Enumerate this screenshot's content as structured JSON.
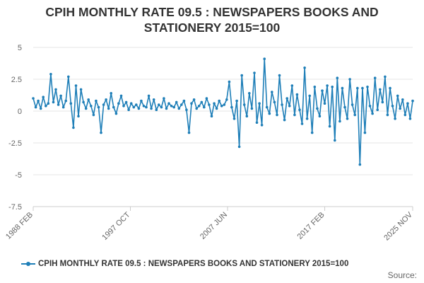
{
  "chart_data": {
    "type": "line",
    "title": "CPIH MONTHLY RATE 09.5 : NEWSPAPERS BOOKS AND STATIONERY 2015=100",
    "xlabel": "",
    "ylabel": "",
    "x_start": "1988 FEB",
    "x_end": "2025 NOV",
    "x_ticks": [
      "1988 FEB",
      "1997 OCT",
      "2007 JUN",
      "2017 FEB",
      "2025 NOV"
    ],
    "y_ticks": [
      "5",
      "2.5",
      "0",
      "-2.5",
      "-5",
      "-7.5"
    ],
    "ylim": [
      -7.5,
      5
    ],
    "grid": true,
    "legend_position": "bottom",
    "series": [
      {
        "name": "CPIH MONTHLY RATE 09.5 : NEWSPAPERS BOOKS AND STATIONERY 2015=100",
        "color": "#1f7fb8",
        "points": [
          [
            "1988 FEB",
            1.0
          ],
          [
            "1988 MAY",
            0.3
          ],
          [
            "1988 AUG",
            0.8
          ],
          [
            "1988 NOV",
            0.2
          ],
          [
            "1989 FEB",
            1.1
          ],
          [
            "1989 MAY",
            0.4
          ],
          [
            "1989 AUG",
            0.6
          ],
          [
            "1989 NOV",
            2.9
          ],
          [
            "1990 FEB",
            0.7
          ],
          [
            "1990 MAY",
            1.7
          ],
          [
            "1990 AUG",
            0.5
          ],
          [
            "1990 NOV",
            1.2
          ],
          [
            "1991 FEB",
            0.3
          ],
          [
            "1991 MAY",
            0.8
          ],
          [
            "1991 AUG",
            2.7
          ],
          [
            "1991 NOV",
            0.6
          ],
          [
            "1992 FEB",
            -1.3
          ],
          [
            "1992 MAY",
            2.0
          ],
          [
            "1992 AUG",
            -0.4
          ],
          [
            "1992 NOV",
            1.7
          ],
          [
            "1993 FEB",
            0.7
          ],
          [
            "1993 MAY",
            0.2
          ],
          [
            "1993 AUG",
            0.9
          ],
          [
            "1993 NOV",
            0.4
          ],
          [
            "1994 FEB",
            -0.3
          ],
          [
            "1994 MAY",
            0.8
          ],
          [
            "1994 AUG",
            0.3
          ],
          [
            "1994 NOV",
            -1.7
          ],
          [
            "1995 FEB",
            0.5
          ],
          [
            "1995 MAY",
            0.9
          ],
          [
            "1995 AUG",
            0.2
          ],
          [
            "1995 NOV",
            1.4
          ],
          [
            "1996 FEB",
            0.3
          ],
          [
            "1996 MAY",
            -0.2
          ],
          [
            "1996 AUG",
            0.6
          ],
          [
            "1996 NOV",
            1.2
          ],
          [
            "1997 FEB",
            0.4
          ],
          [
            "1997 MAY",
            0.7
          ],
          [
            "1997 AUG",
            0.1
          ],
          [
            "1997 NOV",
            0.6
          ],
          [
            "1998 FEB",
            0.3
          ],
          [
            "1998 MAY",
            0.5
          ],
          [
            "1998 AUG",
            0.2
          ],
          [
            "1998 NOV",
            0.8
          ],
          [
            "1999 FEB",
            0.4
          ],
          [
            "1999 MAY",
            0.3
          ],
          [
            "1999 AUG",
            1.2
          ],
          [
            "1999 NOV",
            0.2
          ],
          [
            "2000 FEB",
            0.9
          ],
          [
            "2000 MAY",
            0.1
          ],
          [
            "2000 AUG",
            0.5
          ],
          [
            "2000 NOV",
            0.3
          ],
          [
            "2001 FEB",
            1.0
          ],
          [
            "2001 MAY",
            0.2
          ],
          [
            "2001 AUG",
            0.6
          ],
          [
            "2001 NOV",
            0.4
          ],
          [
            "2002 FEB",
            0.3
          ],
          [
            "2002 MAY",
            0.7
          ],
          [
            "2002 AUG",
            0.2
          ],
          [
            "2002 NOV",
            0.5
          ],
          [
            "2003 FEB",
            0.8
          ],
          [
            "2003 MAY",
            0.1
          ],
          [
            "2003 AUG",
            -1.7
          ],
          [
            "2003 NOV",
            0.6
          ],
          [
            "2004 FEB",
            0.9
          ],
          [
            "2004 MAY",
            0.2
          ],
          [
            "2004 AUG",
            0.4
          ],
          [
            "2004 NOV",
            0.7
          ],
          [
            "2005 FEB",
            0.3
          ],
          [
            "2005 MAY",
            1.0
          ],
          [
            "2005 AUG",
            0.5
          ],
          [
            "2005 NOV",
            -0.4
          ],
          [
            "2006 FEB",
            0.6
          ],
          [
            "2006 MAY",
            0.2
          ],
          [
            "2006 AUG",
            0.8
          ],
          [
            "2006 NOV",
            0.4
          ],
          [
            "2007 FEB",
            0.5
          ],
          [
            "2007 MAY",
            0.9
          ],
          [
            "2007 AUG",
            2.3
          ],
          [
            "2007 NOV",
            0.3
          ],
          [
            "2008 FEB",
            -0.6
          ],
          [
            "2008 MAY",
            0.8
          ],
          [
            "2008 AUG",
            -2.8
          ],
          [
            "2008 NOV",
            2.8
          ],
          [
            "2009 FEB",
            0.5
          ],
          [
            "2009 MAY",
            -0.4
          ],
          [
            "2009 AUG",
            1.4
          ],
          [
            "2009 NOV",
            0.2
          ],
          [
            "2010 FEB",
            3.0
          ],
          [
            "2010 MAY",
            -0.9
          ],
          [
            "2010 AUG",
            0.6
          ],
          [
            "2010 NOV",
            -1.1
          ],
          [
            "2011 FEB",
            4.1
          ],
          [
            "2011 MAY",
            0.3
          ],
          [
            "2011 AUG",
            -0.2
          ],
          [
            "2011 NOV",
            1.5
          ],
          [
            "2012 FEB",
            0.7
          ],
          [
            "2012 MAY",
            -0.3
          ],
          [
            "2012 AUG",
            2.8
          ],
          [
            "2012 NOV",
            0.5
          ],
          [
            "2013 FEB",
            -0.7
          ],
          [
            "2013 MAY",
            1.0
          ],
          [
            "2013 AUG",
            0.4
          ],
          [
            "2013 NOV",
            2.0
          ],
          [
            "2014 FEB",
            -0.3
          ],
          [
            "2014 MAY",
            1.3
          ],
          [
            "2014 AUG",
            0.1
          ],
          [
            "2014 NOV",
            -1.0
          ],
          [
            "2015 FEB",
            3.4
          ],
          [
            "2015 MAY",
            -0.6
          ],
          [
            "2015 AUG",
            1.2
          ],
          [
            "2015 NOV",
            -1.7
          ],
          [
            "2016 FEB",
            1.9
          ],
          [
            "2016 MAY",
            0.2
          ],
          [
            "2016 AUG",
            -0.4
          ],
          [
            "2016 NOV",
            1.6
          ],
          [
            "2017 FEB",
            0.6
          ],
          [
            "2017 MAY",
            2.0
          ],
          [
            "2017 AUG",
            -1.2
          ],
          [
            "2017 NOV",
            1.9
          ],
          [
            "2018 FEB",
            -2.3
          ],
          [
            "2018 MAY",
            2.6
          ],
          [
            "2018 AUG",
            -0.8
          ],
          [
            "2018 NOV",
            1.8
          ],
          [
            "2019 FEB",
            0.3
          ],
          [
            "2019 MAY",
            -0.6
          ],
          [
            "2019 AUG",
            2.5
          ],
          [
            "2019 NOV",
            0.5
          ],
          [
            "2020 FEB",
            -0.3
          ],
          [
            "2020 MAY",
            1.8
          ],
          [
            "2020 AUG",
            -4.2
          ],
          [
            "2020 NOV",
            1.8
          ],
          [
            "2021 FEB",
            -1.7
          ],
          [
            "2021 MAY",
            1.9
          ],
          [
            "2021 AUG",
            0.4
          ],
          [
            "2021 NOV",
            -0.2
          ],
          [
            "2022 FEB",
            2.6
          ],
          [
            "2022 MAY",
            0.1
          ],
          [
            "2022 AUG",
            1.7
          ],
          [
            "2022 NOV",
            0.7
          ],
          [
            "2023 FEB",
            2.7
          ],
          [
            "2023 MAY",
            -0.3
          ],
          [
            "2023 AUG",
            1.8
          ],
          [
            "2023 NOV",
            0.4
          ],
          [
            "2024 FEB",
            -0.6
          ],
          [
            "2024 MAY",
            1.2
          ],
          [
            "2024 AUG",
            0.2
          ],
          [
            "2024 NOV",
            0.9
          ],
          [
            "2025 FEB",
            -0.3
          ],
          [
            "2025 MAY",
            0.6
          ],
          [
            "2025 AUG",
            -0.6
          ],
          [
            "2025 NOV",
            0.8
          ]
        ]
      }
    ]
  },
  "footer": {
    "source_label": "Source:"
  }
}
